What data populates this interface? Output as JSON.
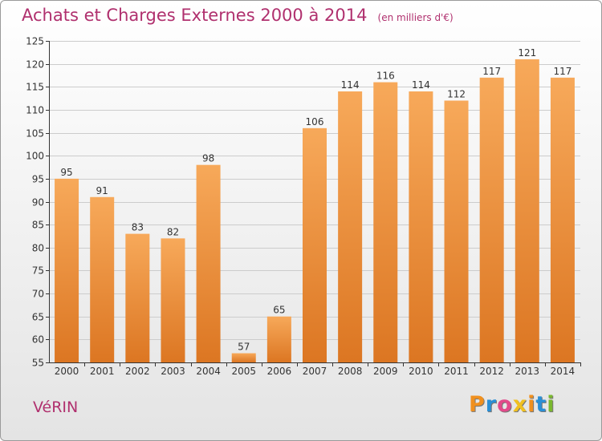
{
  "header": {
    "title": "Achats et Charges Externes 2000 à 2014",
    "unit": "(en milliers d'€)"
  },
  "footer": {
    "commune": "VéRIN",
    "logo_letters": [
      "P",
      "r",
      "o",
      "x",
      "i",
      "t",
      "i"
    ],
    "logo_colors": [
      "#f0901e",
      "#2a8fd6",
      "#e34a8a",
      "#f0c020",
      "#f0901e",
      "#2a8fd6",
      "#7ab82e"
    ]
  },
  "colors": {
    "bar_top": "#f7a95a",
    "bar_bottom": "#dc7622",
    "axis": "#333333",
    "grid": "#cccccc",
    "title": "#b0306e"
  },
  "chart_data": {
    "type": "bar",
    "title": "Achats et Charges Externes 2000 à 2014",
    "subtitle": "(en milliers d'€)",
    "xlabel": "",
    "ylabel": "",
    "categories": [
      "2000",
      "2001",
      "2002",
      "2003",
      "2004",
      "2005",
      "2006",
      "2007",
      "2008",
      "2009",
      "2010",
      "2011",
      "2012",
      "2013",
      "2014"
    ],
    "values": [
      95,
      91,
      83,
      82,
      98,
      57,
      65,
      106,
      114,
      116,
      114,
      112,
      117,
      121,
      117
    ],
    "ylim": [
      55,
      125
    ],
    "yticks": [
      55,
      60,
      65,
      70,
      75,
      80,
      85,
      90,
      95,
      100,
      105,
      110,
      115,
      120,
      125
    ],
    "grid": true,
    "legend": "none"
  }
}
